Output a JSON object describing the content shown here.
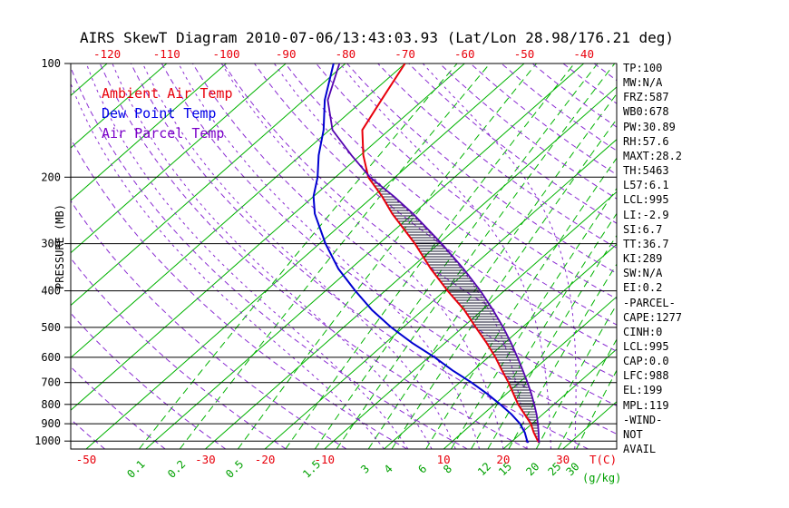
{
  "title": "AIRS SkewT Diagram 2010-07-06/13:43:03.93 (Lat/Lon 28.98/176.21 deg)",
  "legend": [
    {
      "label": "Ambient Air Temp",
      "color": "#e8000b"
    },
    {
      "label": "Dew Point Temp",
      "color": "#0000e8"
    },
    {
      "label": "Air Parcel Temp",
      "color": "#7a00c8"
    }
  ],
  "stats": [
    "TP:100",
    "MW:N/A",
    "FRZ:587",
    "WB0:678",
    "PW:30.89",
    "RH:57.6",
    "MAXT:28.2",
    "TH:5463",
    "L57:6.1",
    "LCL:995",
    "LI:-2.9",
    "SI:6.7",
    "TT:36.7",
    "KI:289",
    "SW:N/A",
    "EI:0.2",
    "-PARCEL-",
    "CAPE:1277",
    "CINH:0",
    "LCL:995",
    "CAP:0.0",
    "LFC:988",
    "EL:199",
    "MPL:119",
    "-WIND-",
    "NOT",
    "AVAIL"
  ],
  "axes": {
    "pressure_label": "PRESSURE (MB)",
    "pressure_ticks": [
      100,
      200,
      300,
      400,
      500,
      600,
      700,
      800,
      900,
      1000
    ],
    "top_temp_ticks_c": [
      -120,
      -110,
      -100,
      -90,
      -80,
      -70,
      -60,
      -50,
      -40
    ],
    "bottom_temp_ticks_c": [
      -50,
      -30,
      -20,
      -10,
      10,
      20,
      30
    ],
    "temp_unit_label": "T(C)",
    "mixing_unit_label": "(g/kg)",
    "mixing_ratio_tick_labels": [
      0.1,
      0.2,
      0.5,
      1.5,
      3,
      4,
      6,
      8,
      12,
      15,
      20,
      25,
      30
    ]
  },
  "colors": {
    "isotherm": "#00b200",
    "mixing_ratio": "#00b200",
    "adiabat": "#8a2bd2",
    "pressure_line": "#000000",
    "ambient": "#e8000b",
    "dew_point": "#0000d0",
    "parcel": "#5505b0",
    "hatch": "#14142e",
    "tick_red": "#e8000b",
    "tick_green": "#00a000",
    "text": "#000000"
  },
  "chart_data": {
    "type": "line",
    "projection": "skew-t log-p",
    "title": "AIRS SkewT Diagram 2010-07-06/13:43:03.93 (Lat/Lon 28.98/176.21 deg)",
    "xlabel": "T(C)",
    "ylabel": "PRESSURE (MB)",
    "pressure_range_mb": [
      100,
      1050
    ],
    "isotherms_c": {
      "min": -120,
      "max": 30,
      "step": 10
    },
    "dry_adiabats_theta_c": {
      "min": -50,
      "max": 240,
      "step": 10
    },
    "moist_adiabats_start_temp_c": [
      0,
      4,
      8,
      12,
      16,
      20,
      24,
      28,
      32
    ],
    "mixing_ratio_lines_g_kg": [
      0.1,
      0.2,
      0.5,
      1,
      1.5,
      2,
      3,
      4,
      6,
      8,
      10,
      12,
      15,
      20,
      25,
      30
    ],
    "parcel_levels": {
      "lcl_mb": 995,
      "lfc_mb": 988,
      "el_mb": 199
    },
    "series": [
      {
        "name": "Ambient Air Temp",
        "points_p_mb_t_c": [
          [
            1010,
            24.8
          ],
          [
            1000,
            24.3
          ],
          [
            950,
            22.0
          ],
          [
            900,
            19.8
          ],
          [
            850,
            17.0
          ],
          [
            800,
            14.0
          ],
          [
            750,
            11.2
          ],
          [
            700,
            8.2
          ],
          [
            650,
            4.8
          ],
          [
            600,
            1.2
          ],
          [
            550,
            -3.0
          ],
          [
            500,
            -7.8
          ],
          [
            450,
            -13.0
          ],
          [
            400,
            -19.5
          ],
          [
            350,
            -26.5
          ],
          [
            300,
            -34.0
          ],
          [
            250,
            -43.5
          ],
          [
            225,
            -48.5
          ],
          [
            200,
            -54.5
          ],
          [
            175,
            -59.5
          ],
          [
            150,
            -64.5
          ],
          [
            125,
            -67.0
          ],
          [
            100,
            -70.0
          ]
        ]
      },
      {
        "name": "Dew Point Temp",
        "points_p_mb_t_c": [
          [
            1010,
            23.0
          ],
          [
            1000,
            22.5
          ],
          [
            950,
            20.5
          ],
          [
            900,
            18.0
          ],
          [
            850,
            14.8
          ],
          [
            800,
            11.0
          ],
          [
            750,
            6.8
          ],
          [
            700,
            2.0
          ],
          [
            650,
            -3.5
          ],
          [
            600,
            -9.0
          ],
          [
            550,
            -15.5
          ],
          [
            500,
            -22.0
          ],
          [
            450,
            -28.5
          ],
          [
            400,
            -35.0
          ],
          [
            350,
            -42.0
          ],
          [
            300,
            -49.0
          ],
          [
            250,
            -56.5
          ],
          [
            225,
            -60.0
          ],
          [
            200,
            -63.0
          ],
          [
            175,
            -67.0
          ],
          [
            150,
            -71.0
          ],
          [
            125,
            -76.5
          ],
          [
            100,
            -82.0
          ]
        ]
      },
      {
        "name": "Air Parcel Temp",
        "points_p_mb_t_c": [
          [
            1010,
            24.8
          ],
          [
            1000,
            24.5
          ],
          [
            995,
            24.3
          ],
          [
            950,
            22.8
          ],
          [
            900,
            21.0
          ],
          [
            850,
            19.0
          ],
          [
            800,
            16.7
          ],
          [
            750,
            14.2
          ],
          [
            700,
            11.4
          ],
          [
            650,
            8.3
          ],
          [
            600,
            4.9
          ],
          [
            550,
            1.1
          ],
          [
            500,
            -3.2
          ],
          [
            450,
            -8.2
          ],
          [
            400,
            -14.0
          ],
          [
            350,
            -21.0
          ],
          [
            300,
            -29.5
          ],
          [
            250,
            -40.0
          ],
          [
            225,
            -46.5
          ],
          [
            200,
            -54.2
          ],
          [
            175,
            -61.5
          ],
          [
            150,
            -69.5
          ],
          [
            125,
            -76.0
          ],
          [
            100,
            -81.0
          ]
        ]
      }
    ],
    "cape_hatch_between": [
      "Air Parcel Temp",
      "Ambient Air Temp"
    ]
  }
}
